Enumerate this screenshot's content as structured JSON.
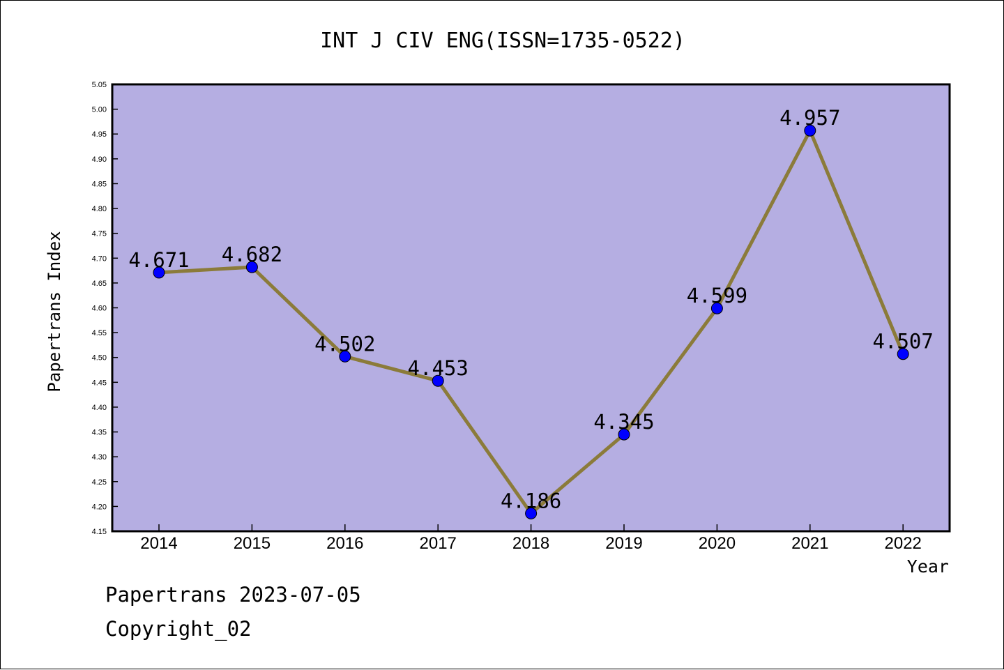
{
  "chart_data": {
    "type": "line",
    "title": "INT J CIV ENG(ISSN=1735-0522)",
    "xlabel": "Year",
    "ylabel": "Papertrans Index",
    "categories": [
      "2014",
      "2015",
      "2016",
      "2017",
      "2018",
      "2019",
      "2020",
      "2021",
      "2022"
    ],
    "series": [
      {
        "values": [
          4.671,
          4.682,
          4.502,
          4.453,
          4.186,
          4.345,
          4.599,
          4.957,
          4.507
        ],
        "data_labels": [
          "4.671",
          "4.682",
          "4.502",
          "4.453",
          "4.186",
          "4.345",
          "4.599",
          "4.957",
          "4.507"
        ]
      }
    ],
    "ylim": [
      4.15,
      5.05
    ],
    "yticks": [
      "4.15",
      "4.20",
      "4.25",
      "4.30",
      "4.35",
      "4.40",
      "4.45",
      "4.50",
      "4.55",
      "4.60",
      "4.65",
      "4.70",
      "4.75",
      "4.80",
      "4.85",
      "4.90",
      "4.95",
      "5.00",
      "5.05"
    ],
    "grid": false,
    "colors": {
      "plot_background": "#b5aee2",
      "line": "#8b7b3a",
      "marker": "#0000ff"
    }
  },
  "footer": {
    "source": "Papertrans 2023-07-05",
    "copyright": "Copyright_02"
  }
}
